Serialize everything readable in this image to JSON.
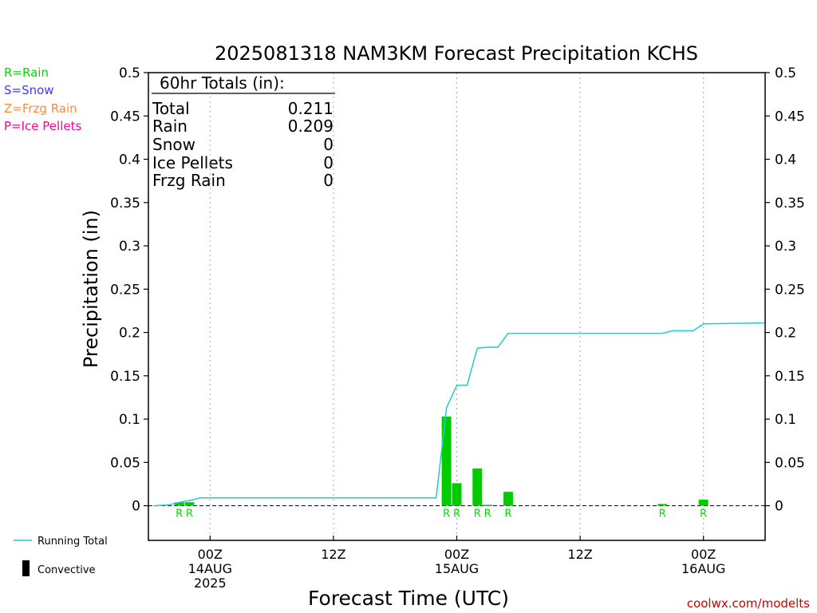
{
  "chart_data": {
    "type": "bar",
    "title": "2025081318 NAM3KM Forecast Precipitation KCHS",
    "ylabel": "Precipitation (in)",
    "xlabel": "Forecast Time (UTC)",
    "ylim": [
      -0.04,
      0.5
    ],
    "yticks": [
      "0.5",
      "0.45",
      "0.4",
      "0.35",
      "0.3",
      "0.25",
      "0.2",
      "0.15",
      "0.1",
      "0.05",
      "0"
    ],
    "x_hour_range": [
      -6,
      54
    ],
    "x_ticks": [
      {
        "hour": 0,
        "lines": [
          "00Z",
          "14AUG",
          "2025"
        ]
      },
      {
        "hour": 12,
        "lines": [
          "12Z"
        ]
      },
      {
        "hour": 24,
        "lines": [
          "00Z",
          "15AUG"
        ]
      },
      {
        "hour": 36,
        "lines": [
          "12Z"
        ]
      },
      {
        "hour": 48,
        "lines": [
          "00Z",
          "16AUG"
        ]
      }
    ],
    "gridlines_dotted_at_hours": [
      0,
      12,
      24,
      36,
      48
    ],
    "precip_type_legend": [
      {
        "label": "R=Rain",
        "color": "#00dd00"
      },
      {
        "label": "S=Snow",
        "color": "#3c3cff"
      },
      {
        "label": "Z=Frzg Rain",
        "color": "#ff8a3c"
      },
      {
        "label": "P=Ice Pellets",
        "color": "#ff0099"
      }
    ],
    "totals_box": {
      "header": "60hr Totals (in):",
      "rows": [
        {
          "label": "Total",
          "value": "0.211"
        },
        {
          "label": "Rain",
          "value": "0.209"
        },
        {
          "label": "Snow",
          "value": "0"
        },
        {
          "label": "Ice Pellets",
          "value": "0"
        },
        {
          "label": "Frzg Rain",
          "value": "0"
        }
      ]
    },
    "series": [
      {
        "name": "Precipitation",
        "color": "#00cc00",
        "bars": [
          {
            "hour": -3,
            "value": 0.004,
            "type": "R"
          },
          {
            "hour": -2,
            "value": 0.004,
            "type": "R"
          },
          {
            "hour": 23,
            "value": 0.103,
            "type": "R"
          },
          {
            "hour": 24,
            "value": 0.026,
            "type": "R"
          },
          {
            "hour": 26,
            "value": 0.043,
            "type": "R"
          },
          {
            "hour": 27,
            "value": 0.001,
            "type": "R"
          },
          {
            "hour": 29,
            "value": 0.016,
            "type": "R"
          },
          {
            "hour": 44,
            "value": 0.002,
            "type": "R"
          },
          {
            "hour": 48,
            "value": 0.007,
            "type": "R"
          }
        ]
      },
      {
        "name": "Running Total",
        "color": "#22cccc",
        "points": [
          [
            -5.5,
            0
          ],
          [
            -4,
            0.001
          ],
          [
            -3,
            0.004
          ],
          [
            -2,
            0.006
          ],
          [
            -1,
            0.009
          ],
          [
            22,
            0.009
          ],
          [
            23,
            0.113
          ],
          [
            24,
            0.139
          ],
          [
            25,
            0.139
          ],
          [
            26,
            0.182
          ],
          [
            27,
            0.183
          ],
          [
            28,
            0.183
          ],
          [
            29,
            0.199
          ],
          [
            44,
            0.199
          ],
          [
            45,
            0.202
          ],
          [
            47,
            0.202
          ],
          [
            48,
            0.21
          ],
          [
            54,
            0.211
          ]
        ]
      }
    ],
    "bottom_legend": [
      {
        "label": "Running Total",
        "symbol": "line"
      },
      {
        "label": "Convective",
        "symbol": "bar"
      }
    ],
    "credit": "coolwx.com/modelts"
  }
}
